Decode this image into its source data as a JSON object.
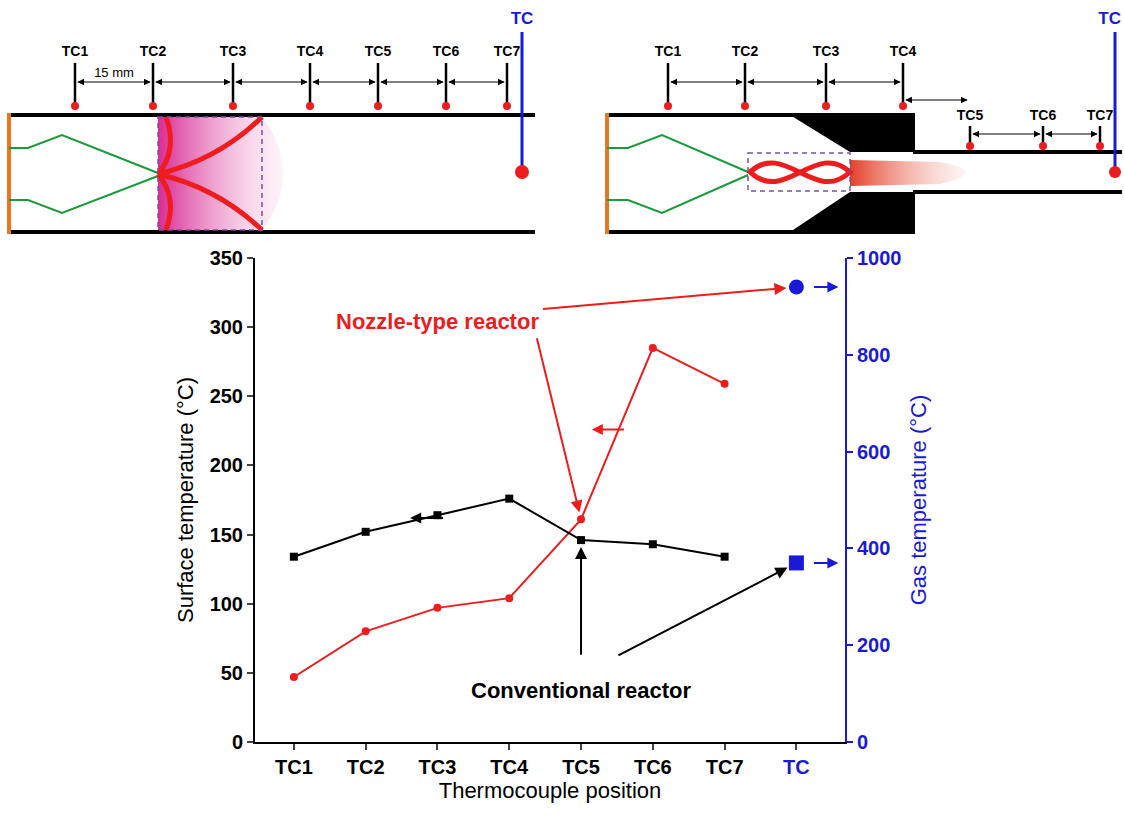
{
  "chart_data": {
    "type": "line",
    "x_label": "Thermocouple position",
    "y_label": "Surface temperature (°C)",
    "y2_label": "Gas temperature (°C)",
    "categories": [
      "TC1",
      "TC2",
      "TC3",
      "TC4",
      "TC5",
      "TC6",
      "TC7",
      "TC"
    ],
    "series": [
      {
        "name": "Nozzle-type reactor",
        "type": "line",
        "color": "#ee1c1c",
        "marker": "circle",
        "values": [
          47,
          80,
          97,
          104,
          161,
          285,
          259,
          null
        ]
      },
      {
        "name": "Conventional reactor",
        "type": "line",
        "color": "#000000",
        "marker": "square",
        "values": [
          134,
          152,
          164,
          176,
          146,
          143,
          134,
          null
        ]
      },
      {
        "type": "scatter",
        "axis": "y2",
        "color": "#1a1ad6",
        "marker": "circle",
        "values": [
          null,
          null,
          null,
          null,
          null,
          null,
          null,
          940
        ]
      },
      {
        "type": "scatter",
        "axis": "y2",
        "color": "#1a1ad6",
        "marker": "square",
        "values": [
          null,
          null,
          null,
          null,
          null,
          null,
          null,
          370
        ]
      }
    ],
    "ylim": [
      0,
      350
    ],
    "yticks": [
      0,
      50,
      100,
      150,
      200,
      250,
      300,
      350
    ],
    "y2lim": [
      0,
      1000
    ],
    "y2ticks": [
      0,
      200,
      400,
      600,
      800,
      1000
    ],
    "grid": false
  },
  "diagrams": [
    {
      "thermocouples": [
        "TC1",
        "TC2",
        "TC3",
        "TC4",
        "TC5",
        "TC6",
        "TC7"
      ],
      "gas_thermocouple": "TC",
      "spacing": "15 mm"
    },
    {
      "thermocouples": [
        "TC1",
        "TC2",
        "TC3",
        "TC4",
        "TC5",
        "TC6",
        "TC7"
      ],
      "gas_thermocouple": "TC"
    }
  ]
}
